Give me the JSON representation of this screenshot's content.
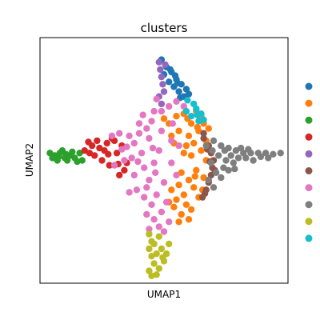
{
  "chart_data": {
    "type": "scatter",
    "title": "clusters",
    "xlabel": "UMAP1",
    "ylabel": "UMAP2",
    "xticks": [],
    "yticks": [],
    "xlim": [
      0,
      10
    ],
    "ylim": [
      0,
      10
    ],
    "grid": false,
    "legend_position": "right",
    "legend_entries": [
      {
        "label": "",
        "color": "#1f77b4"
      },
      {
        "label": "",
        "color": "#ff7f0e"
      },
      {
        "label": "",
        "color": "#2ca02c"
      },
      {
        "label": "",
        "color": "#d62728"
      },
      {
        "label": "",
        "color": "#9467bd"
      },
      {
        "label": "",
        "color": "#8c564b"
      },
      {
        "label": "",
        "color": "#e377c2"
      },
      {
        "label": "",
        "color": "#7f7f7f"
      },
      {
        "label": "",
        "color": "#bcbd22"
      },
      {
        "label": "",
        "color": "#17becf"
      }
    ],
    "series": [
      {
        "color": "#1f77b4",
        "values": [
          [
            4.9,
            9.1
          ],
          [
            5.1,
            8.8
          ],
          [
            5.3,
            8.6
          ],
          [
            5.5,
            8.3
          ],
          [
            5.4,
            8.0
          ],
          [
            5.6,
            7.8
          ],
          [
            5.8,
            7.6
          ],
          [
            5.2,
            8.2
          ],
          [
            5.7,
            8.1
          ],
          [
            5.0,
            8.5
          ],
          [
            5.9,
            7.9
          ],
          [
            5.45,
            8.45
          ],
          [
            5.65,
            7.55
          ],
          [
            6.0,
            7.7
          ],
          [
            5.25,
            8.7
          ],
          [
            5.55,
            8.15
          ]
        ]
      },
      {
        "color": "#ff7f0e",
        "values": [
          [
            5.2,
            6.5
          ],
          [
            5.5,
            6.8
          ],
          [
            5.8,
            6.9
          ],
          [
            6.1,
            6.5
          ],
          [
            6.4,
            6.2
          ],
          [
            6.0,
            6.0
          ],
          [
            5.6,
            6.2
          ],
          [
            6.6,
            6.5
          ],
          [
            6.8,
            6.3
          ],
          [
            6.2,
            5.7
          ],
          [
            6.5,
            5.4
          ],
          [
            6.7,
            5.0
          ],
          [
            6.3,
            4.6
          ],
          [
            6.6,
            4.3
          ],
          [
            6.0,
            4.2
          ],
          [
            5.6,
            4.0
          ],
          [
            5.3,
            3.8
          ],
          [
            5.8,
            3.6
          ],
          [
            6.2,
            3.9
          ],
          [
            6.4,
            3.5
          ],
          [
            5.5,
            3.4
          ],
          [
            5.9,
            3.2
          ],
          [
            6.1,
            3.0
          ],
          [
            5.4,
            3.1
          ],
          [
            5.7,
            2.8
          ],
          [
            6.0,
            2.6
          ],
          [
            5.2,
            3.3
          ],
          [
            5.8,
            5.3
          ],
          [
            6.1,
            5.2
          ],
          [
            5.4,
            5.7
          ],
          [
            5.9,
            5.6
          ],
          [
            6.7,
            5.8
          ],
          [
            5.3,
            6.0
          ],
          [
            6.5,
            6.8
          ],
          [
            6.3,
            7.0
          ],
          [
            5.0,
            6.7
          ],
          [
            5.7,
            4.5
          ],
          [
            6.55,
            3.8
          ],
          [
            5.6,
            2.5
          ],
          [
            6.35,
            6.35
          ],
          [
            5.95,
            6.7
          ],
          [
            6.25,
            4.35
          ]
        ]
      },
      {
        "color": "#2ca02c",
        "values": [
          [
            0.4,
            5.3
          ],
          [
            0.6,
            5.2
          ],
          [
            0.8,
            5.3
          ],
          [
            1.0,
            5.1
          ],
          [
            0.7,
            5.0
          ],
          [
            0.9,
            5.4
          ],
          [
            1.2,
            5.2
          ],
          [
            1.1,
            5.0
          ],
          [
            1.4,
            5.1
          ],
          [
            1.6,
            5.3
          ],
          [
            0.5,
            5.1
          ],
          [
            1.3,
            5.35
          ],
          [
            1.5,
            4.95
          ],
          [
            0.75,
            5.15
          ],
          [
            1.05,
            5.25
          ],
          [
            1.7,
            5.0
          ]
        ]
      },
      {
        "color": "#d62728",
        "values": [
          [
            1.8,
            5.4
          ],
          [
            2.1,
            5.6
          ],
          [
            2.4,
            5.5
          ],
          [
            2.7,
            5.7
          ],
          [
            3.0,
            5.8
          ],
          [
            3.3,
            5.6
          ],
          [
            2.2,
            5.2
          ],
          [
            2.5,
            5.0
          ],
          [
            2.8,
            4.8
          ],
          [
            2.6,
            5.4
          ],
          [
            3.1,
            5.3
          ],
          [
            2.9,
            5.9
          ],
          [
            2.3,
            5.8
          ],
          [
            3.4,
            4.6
          ],
          [
            3.2,
            4.4
          ],
          [
            2.0,
            5.3
          ],
          [
            2.75,
            5.25
          ],
          [
            3.5,
            4.9
          ],
          [
            1.95,
            5.75
          ],
          [
            3.15,
            4.85
          ]
        ]
      },
      {
        "color": "#9467bd",
        "values": [
          [
            4.8,
            9.0
          ],
          [
            4.85,
            8.7
          ],
          [
            4.9,
            8.4
          ],
          [
            4.95,
            8.1
          ],
          [
            5.0,
            7.8
          ],
          [
            4.8,
            7.6
          ],
          [
            5.05,
            8.9
          ],
          [
            4.9,
            7.3
          ]
        ]
      },
      {
        "color": "#8c564b",
        "values": [
          [
            6.6,
            5.9
          ],
          [
            6.8,
            5.6
          ],
          [
            6.9,
            5.3
          ],
          [
            7.0,
            5.0
          ],
          [
            6.95,
            4.7
          ],
          [
            6.9,
            4.4
          ],
          [
            6.8,
            4.1
          ],
          [
            6.7,
            3.8
          ],
          [
            6.55,
            3.5
          ],
          [
            6.75,
            5.45
          ],
          [
            6.85,
            4.95
          ],
          [
            6.6,
            6.1
          ],
          [
            7.05,
            4.6
          ],
          [
            6.65,
            3.65
          ]
        ]
      },
      {
        "color": "#e377c2",
        "values": [
          [
            4.7,
            7.5
          ],
          [
            4.6,
            7.0
          ],
          [
            4.5,
            6.6
          ],
          [
            4.3,
            6.3
          ],
          [
            4.0,
            6.1
          ],
          [
            3.6,
            6.0
          ],
          [
            3.2,
            6.1
          ],
          [
            2.9,
            6.0
          ],
          [
            3.8,
            5.7
          ],
          [
            4.4,
            5.9
          ],
          [
            4.9,
            6.2
          ],
          [
            5.3,
            5.8
          ],
          [
            5.6,
            5.6
          ],
          [
            4.1,
            5.3
          ],
          [
            3.7,
            5.1
          ],
          [
            3.4,
            5.0
          ],
          [
            3.0,
            4.8
          ],
          [
            4.2,
            4.7
          ],
          [
            4.6,
            4.9
          ],
          [
            4.8,
            5.4
          ],
          [
            3.8,
            4.4
          ],
          [
            4.4,
            4.2
          ],
          [
            3.9,
            3.8
          ],
          [
            4.2,
            3.5
          ],
          [
            4.5,
            3.2
          ],
          [
            4.3,
            2.8
          ],
          [
            4.6,
            2.6
          ],
          [
            4.9,
            2.9
          ],
          [
            5.1,
            3.3
          ],
          [
            4.8,
            2.3
          ],
          [
            5.0,
            2.1
          ],
          [
            4.4,
            2.2
          ],
          [
            5.2,
            2.5
          ],
          [
            4.7,
            3.6
          ],
          [
            3.6,
            3.7
          ],
          [
            5.5,
            4.4
          ],
          [
            5.3,
            4.9
          ],
          [
            4.0,
            6.5
          ],
          [
            4.9,
            7.0
          ],
          [
            5.2,
            7.2
          ],
          [
            5.5,
            7.4
          ],
          [
            5.8,
            7.2
          ],
          [
            4.55,
            5.5
          ],
          [
            3.3,
            5.45
          ],
          [
            5.0,
            4.1
          ],
          [
            4.65,
            4.5
          ],
          [
            3.95,
            4.95
          ],
          [
            4.3,
            3.9
          ],
          [
            5.35,
            6.5
          ],
          [
            4.15,
            6.85
          ],
          [
            3.5,
            5.55
          ]
        ]
      },
      {
        "color": "#7f7f7f",
        "values": [
          [
            6.7,
            5.6
          ],
          [
            7.0,
            5.8
          ],
          [
            7.3,
            5.6
          ],
          [
            7.6,
            5.5
          ],
          [
            7.9,
            5.4
          ],
          [
            8.2,
            5.3
          ],
          [
            8.5,
            5.3
          ],
          [
            8.8,
            5.3
          ],
          [
            9.1,
            5.3
          ],
          [
            9.4,
            5.25
          ],
          [
            9.7,
            5.3
          ],
          [
            7.2,
            5.2
          ],
          [
            7.5,
            5.0
          ],
          [
            7.8,
            4.9
          ],
          [
            7.4,
            4.7
          ],
          [
            7.1,
            4.5
          ],
          [
            6.9,
            4.9
          ],
          [
            7.7,
            5.2
          ],
          [
            8.0,
            5.1
          ],
          [
            8.3,
            5.1
          ],
          [
            8.6,
            5.0
          ],
          [
            7.3,
            4.3
          ],
          [
            6.8,
            4.2
          ],
          [
            7.0,
            3.9
          ],
          [
            7.6,
            4.6
          ],
          [
            8.1,
            5.5
          ],
          [
            8.4,
            5.45
          ],
          [
            8.9,
            5.15
          ],
          [
            9.2,
            5.1
          ],
          [
            7.45,
            5.4
          ],
          [
            6.95,
            5.4
          ],
          [
            7.85,
            4.65
          ]
        ]
      },
      {
        "color": "#bcbd22",
        "values": [
          [
            4.4,
            2.0
          ],
          [
            4.5,
            1.7
          ],
          [
            4.4,
            1.4
          ],
          [
            4.5,
            1.1
          ],
          [
            4.6,
            0.8
          ],
          [
            4.4,
            0.5
          ],
          [
            4.8,
            0.6
          ],
          [
            5.0,
            0.9
          ],
          [
            4.7,
            1.2
          ],
          [
            4.9,
            1.4
          ],
          [
            5.1,
            1.2
          ],
          [
            4.6,
            1.6
          ],
          [
            4.8,
            1.9
          ],
          [
            5.2,
            1.6
          ],
          [
            4.5,
            0.3
          ],
          [
            4.7,
            0.35
          ],
          [
            4.95,
            1.05
          ]
        ]
      },
      {
        "color": "#17becf",
        "values": [
          [
            5.9,
            7.0
          ],
          [
            6.1,
            6.8
          ],
          [
            6.3,
            7.1
          ],
          [
            6.5,
            6.9
          ],
          [
            6.4,
            6.6
          ],
          [
            6.2,
            7.3
          ],
          [
            5.95,
            7.45
          ],
          [
            6.6,
            6.65
          ],
          [
            6.35,
            6.85
          ]
        ]
      }
    ]
  }
}
